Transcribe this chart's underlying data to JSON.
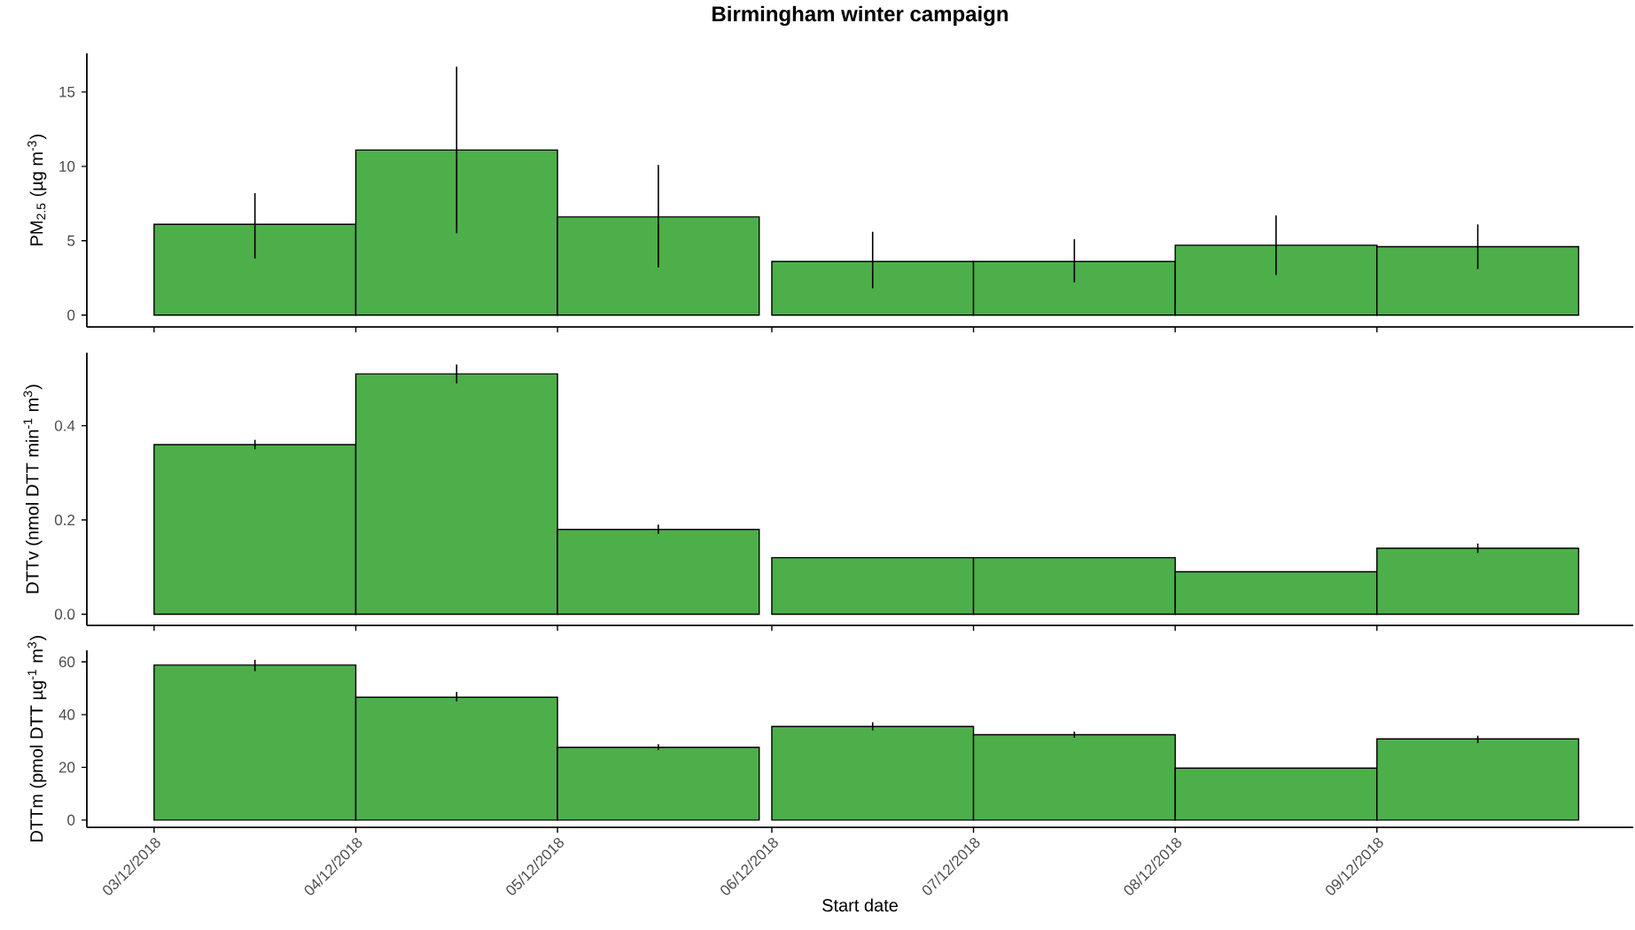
{
  "chart_data": [
    {
      "type": "bar",
      "title": "Birmingham winter campaign",
      "ylabel": "PM$_{2.5}$ (µg m$^{-3}$)",
      "x": [
        "2018-12-03T12:00",
        "2018-12-04T12:00",
        "2018-12-05T12:00",
        "2018-12-06T13:30",
        "2018-12-07T13:30",
        "2018-12-08T13:30",
        "2018-12-09T13:30"
      ],
      "values": [
        6.1,
        11.1,
        6.6,
        3.6,
        3.6,
        4.7,
        4.6
      ],
      "errors": [
        [
          3.8,
          8.2
        ],
        [
          5.5,
          16.7
        ],
        [
          3.2,
          10.1
        ],
        [
          1.8,
          5.6
        ],
        [
          2.2,
          5.1
        ],
        [
          2.7,
          6.7
        ],
        [
          3.1,
          6.1
        ]
      ],
      "color": "#4daf4a",
      "ylim": [
        -0.8,
        17.6
      ],
      "yticks": [
        0,
        5,
        10,
        15
      ],
      "xlim": [
        "2018-12-02T16:00",
        "2018-12-10T08:00"
      ],
      "xticks": [
        {
          "value": "2018-12-03",
          "label": null
        },
        {
          "value": "2018-12-04",
          "label": null
        },
        {
          "value": "2018-12-05",
          "label": null
        },
        {
          "value": "2018-12-06T01:30",
          "label": null
        },
        {
          "value": "2018-12-07T01:30",
          "label": null
        },
        {
          "value": "2018-12-08T01:30",
          "label": null
        },
        {
          "value": "2018-12-09T01:30",
          "label": null
        }
      ],
      "tick_labels": "y",
      "grid": false
    },
    {
      "type": "bar",
      "ylabel": "DTTv (nmol DTT min$^{-1}$ m$^{3}$)",
      "x": [
        "2018-12-03T12:00",
        "2018-12-04T12:00",
        "2018-12-05T12:00",
        "2018-12-06T13:30",
        "2018-12-07T13:30",
        "2018-12-08T13:30",
        "2018-12-09T13:30"
      ],
      "values": [
        0.36,
        0.51,
        0.18,
        0.12,
        0.12,
        0.09,
        0.14
      ],
      "errors": [
        [
          0.35,
          0.37
        ],
        [
          0.49,
          0.53
        ],
        [
          0.17,
          0.19
        ],
        null,
        null,
        null,
        [
          0.13,
          0.15
        ]
      ],
      "color": "#4daf4a",
      "ylim": [
        -0.024,
        0.555
      ],
      "yticks": [
        {
          "value": 0,
          "label": "0.0"
        },
        0.2,
        0.4
      ],
      "xlim": [
        "2018-12-02T16:00",
        "2018-12-10T08:00"
      ],
      "xticks": [
        {
          "value": "2018-12-03",
          "label": null
        },
        {
          "value": "2018-12-04",
          "label": null
        },
        {
          "value": "2018-12-05",
          "label": null
        },
        {
          "value": "2018-12-06T01:30",
          "label": null
        },
        {
          "value": "2018-12-07T01:30",
          "label": null
        },
        {
          "value": "2018-12-08T01:30",
          "label": null
        },
        {
          "value": "2018-12-09T01:30",
          "label": null
        }
      ],
      "tick_labels": "y",
      "grid": false
    },
    {
      "type": "bar",
      "ylabel": "DTTm (pmol DTT µg$^{-1}$ m$^{3}$)",
      "xlabel": "Start date",
      "x": [
        "2018-12-03T12:00",
        "2018-12-04T12:00",
        "2018-12-05T12:00",
        "2018-12-06T13:30",
        "2018-12-07T13:30",
        "2018-12-08T13:30",
        "2018-12-09T13:30"
      ],
      "values": [
        58.8,
        46.6,
        27.6,
        35.5,
        32.4,
        19.7,
        30.8
      ],
      "errors": [
        [
          56.5,
          60.8
        ],
        [
          45,
          48.6
        ],
        [
          26.5,
          28.8
        ],
        [
          34,
          37.1
        ],
        [
          31.2,
          33.6
        ],
        null,
        [
          29.2,
          32
        ]
      ],
      "color": "#4daf4a",
      "ylim": [
        -2.8,
        64.4
      ],
      "yticks": [
        0,
        20,
        40,
        60
      ],
      "xlim": [
        "2018-12-02T16:00",
        "2018-12-10T08:00"
      ],
      "xticks": [
        {
          "value": "2018-12-03",
          "label": "03/12/2018"
        },
        {
          "value": "2018-12-04",
          "label": "04/12/2018"
        },
        {
          "value": "2018-12-05",
          "label": "05/12/2018"
        },
        {
          "value": "2018-12-06T01:30",
          "label": "06/12/2018"
        },
        {
          "value": "2018-12-07T01:30",
          "label": "07/12/2018"
        },
        {
          "value": "2018-12-08T01:30",
          "label": "08/12/2018"
        },
        {
          "value": "2018-12-09T01:30",
          "label": "09/12/2018"
        }
      ],
      "grid": false
    }
  ]
}
